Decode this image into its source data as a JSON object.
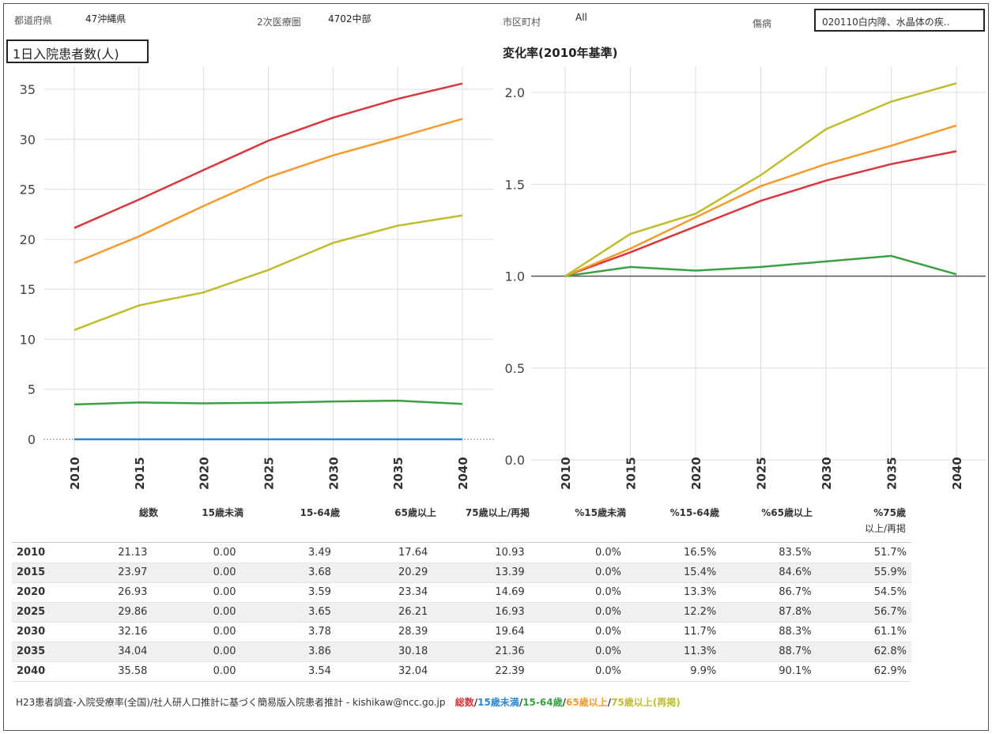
{
  "filters": {
    "pref_label": "都道府県",
    "pref_value": "47沖縄県",
    "area_label": "2次医療圏",
    "area_value": "4702中部",
    "city_label": "市区町村",
    "city_value": "All",
    "disease_label": "傷病",
    "disease_value": "020110白内障、水晶体の疾.."
  },
  "colors": {
    "total": "#d9363e",
    "under15": "#2f86c9",
    "age15_64": "#3aa142",
    "age65": "#f59b2b",
    "age75": "#bdbd2d"
  },
  "chart_data": [
    {
      "type": "line",
      "title": "1日入院患者数(人)",
      "x": [
        "2010",
        "2015",
        "2020",
        "2025",
        "2030",
        "2035",
        "2040"
      ],
      "ylim": [
        0,
        35
      ],
      "yticks": [
        "0",
        "5",
        "10",
        "15",
        "20",
        "25",
        "30",
        "35"
      ],
      "series": [
        {
          "name": "総数",
          "color": "#d9363e",
          "values": [
            21.13,
            23.97,
            26.93,
            29.86,
            32.16,
            34.04,
            35.58
          ]
        },
        {
          "name": "15歳未満",
          "color": "#2f86c9",
          "values": [
            0.0,
            0.0,
            0.0,
            0.0,
            0.0,
            0.0,
            0.0
          ]
        },
        {
          "name": "15-64歳",
          "color": "#3aa142",
          "values": [
            3.49,
            3.68,
            3.59,
            3.65,
            3.78,
            3.86,
            3.54
          ]
        },
        {
          "name": "65歳以上",
          "color": "#f59b2b",
          "values": [
            17.64,
            20.29,
            23.34,
            26.21,
            28.39,
            30.18,
            32.04
          ]
        },
        {
          "name": "75歳以上/再掲",
          "color": "#bdbd2d",
          "values": [
            10.93,
            13.39,
            14.69,
            16.93,
            19.64,
            21.36,
            22.39
          ]
        }
      ]
    },
    {
      "type": "line",
      "title": "変化率(2010年基準)",
      "x": [
        "2010",
        "2015",
        "2020",
        "2025",
        "2030",
        "2035",
        "2040"
      ],
      "ylim": [
        0,
        2.0
      ],
      "yticks": [
        "0.0",
        "0.5",
        "1.0",
        "1.5",
        "2.0"
      ],
      "baseline": 1.0,
      "series": [
        {
          "name": "総数",
          "color": "#d9363e",
          "values": [
            1.0,
            1.13,
            1.27,
            1.41,
            1.52,
            1.61,
            1.68
          ]
        },
        {
          "name": "15-64歳",
          "color": "#3aa142",
          "values": [
            1.0,
            1.05,
            1.03,
            1.05,
            1.08,
            1.11,
            1.01
          ]
        },
        {
          "name": "65歳以上",
          "color": "#f59b2b",
          "values": [
            1.0,
            1.15,
            1.32,
            1.49,
            1.61,
            1.71,
            1.82
          ]
        },
        {
          "name": "75歳以上/再掲",
          "color": "#bdbd2d",
          "values": [
            1.0,
            1.23,
            1.34,
            1.55,
            1.8,
            1.95,
            2.05
          ]
        }
      ]
    }
  ],
  "table": {
    "headers": [
      "総数",
      "15歳未満",
      "15-64歳",
      "65歳以上",
      "75歳以上/再掲",
      "%15歳未満",
      "%15-64歳",
      "%65歳以上",
      "%75歳",
      "以上/再掲"
    ],
    "rows": [
      [
        "2010",
        "21.13",
        "0.00",
        "3.49",
        "17.64",
        "10.93",
        "0.0%",
        "16.5%",
        "83.5%",
        "51.7%"
      ],
      [
        "2015",
        "23.97",
        "0.00",
        "3.68",
        "20.29",
        "13.39",
        "0.0%",
        "15.4%",
        "84.6%",
        "55.9%"
      ],
      [
        "2020",
        "26.93",
        "0.00",
        "3.59",
        "23.34",
        "14.69",
        "0.0%",
        "13.3%",
        "86.7%",
        "54.5%"
      ],
      [
        "2025",
        "29.86",
        "0.00",
        "3.65",
        "26.21",
        "16.93",
        "0.0%",
        "12.2%",
        "87.8%",
        "56.7%"
      ],
      [
        "2030",
        "32.16",
        "0.00",
        "3.78",
        "28.39",
        "19.64",
        "0.0%",
        "11.7%",
        "88.3%",
        "61.1%"
      ],
      [
        "2035",
        "34.04",
        "0.00",
        "3.86",
        "30.18",
        "21.36",
        "0.0%",
        "11.3%",
        "88.7%",
        "62.8%"
      ],
      [
        "2040",
        "35.58",
        "0.00",
        "3.54",
        "32.04",
        "22.39",
        "0.0%",
        "9.9%",
        "90.1%",
        "62.9%"
      ]
    ]
  },
  "footer": {
    "text": "H23患者調査-入院受療率(全国)/社人研人口推計に基づく簡易版入院患者推計 - kishikaw@ncc.go.jp",
    "legend_total": "総数",
    "sep1": "/",
    "legend_u15": "15歳未満",
    "sep2": "/",
    "legend_1564": "15-64歳",
    "sep3": "/",
    "legend_65": "65歳以上",
    "sep4": "/",
    "legend_75": "75歳以上(再掲)"
  }
}
